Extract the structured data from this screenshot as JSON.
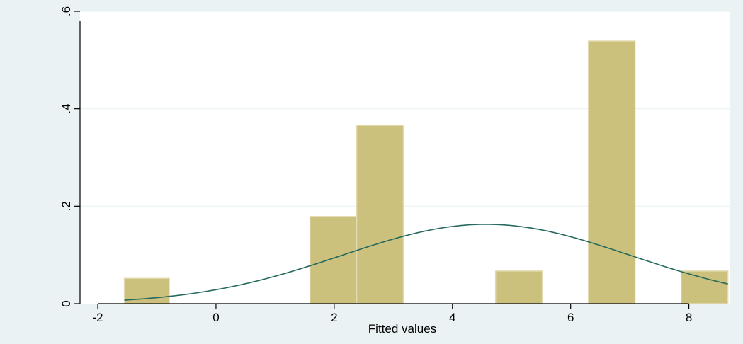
{
  "chart_data": {
    "type": "bar",
    "title": "",
    "xlabel": "Fitted values",
    "ylabel": "",
    "xlim": [
      -2.3,
      8.7
    ],
    "ylim": [
      0,
      0.6
    ],
    "grid": true,
    "legend": "none",
    "x_ticks": [
      {
        "value": -2,
        "label": "-2"
      },
      {
        "value": 0,
        "label": "0"
      },
      {
        "value": 2,
        "label": "2"
      },
      {
        "value": 4,
        "label": "4"
      },
      {
        "value": 6,
        "label": "6"
      },
      {
        "value": 8,
        "label": "8"
      }
    ],
    "y_ticks": [
      {
        "value": 0,
        "label": "0"
      },
      {
        "value": 0.2,
        "label": ".2"
      },
      {
        "value": 0.4,
        "label": ".4"
      },
      {
        "value": 0.6,
        "label": ".6"
      }
    ],
    "bins": [
      {
        "x0": -1.55,
        "x1": -0.79,
        "density": 0.052
      },
      {
        "x0": 1.59,
        "x1": 2.38,
        "density": 0.179
      },
      {
        "x0": 2.38,
        "x1": 3.17,
        "density": 0.366
      },
      {
        "x0": 4.73,
        "x1": 5.52,
        "density": 0.067
      },
      {
        "x0": 6.3,
        "x1": 7.09,
        "density": 0.539
      },
      {
        "x0": 7.87,
        "x1": 8.66,
        "density": 0.067
      }
    ],
    "normal_curve": {
      "mean": 4.57,
      "sd": 2.45,
      "x_range": [
        -1.55,
        8.66
      ]
    },
    "colors": {
      "bar_fill": "#cbc17c",
      "bar_edge": "#e2dbb1",
      "curve": "#26695f",
      "plot_bg": "#ffffff",
      "outer_bg": "#eaf2f3",
      "grid": "#eaf2f3"
    }
  }
}
